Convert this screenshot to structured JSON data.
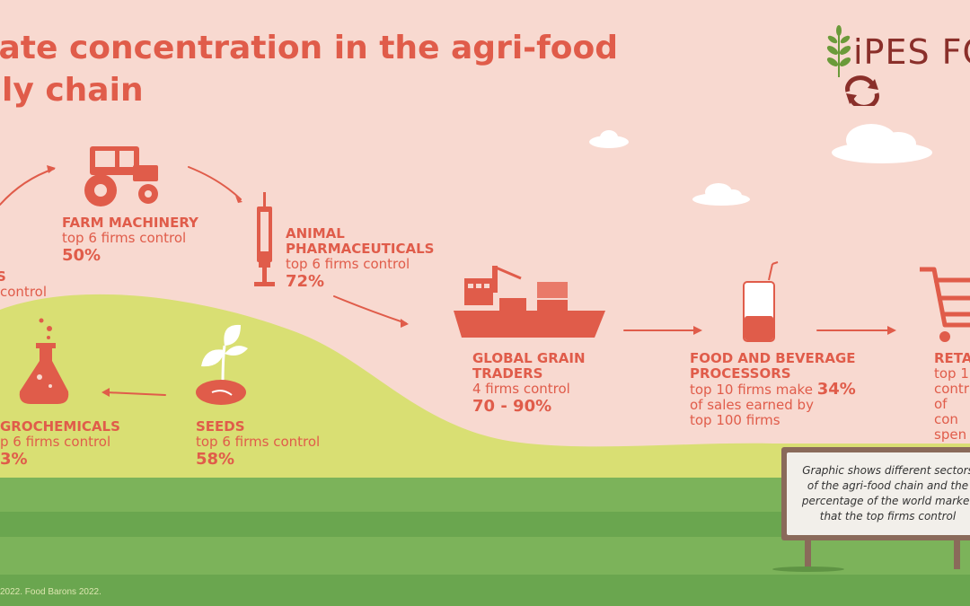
{
  "title": {
    "line1": "orate concentration in the agri-food",
    "line2": "ly chain"
  },
  "logo": {
    "text": "iPES FO"
  },
  "sectors": {
    "left_partial": {
      "name": "S",
      "detail": "control"
    },
    "farm_machinery": {
      "name": "FARM MACHINERY",
      "detail": "top 6 firms control",
      "value": "50%"
    },
    "animal_pharma": {
      "name1": "ANIMAL",
      "name2": "PHARMACEUTICALS",
      "detail": "top 6 firms control",
      "value": "72%"
    },
    "grain_traders": {
      "name1": "GLOBAL GRAIN",
      "name2": "TRADERS",
      "detail": "4 firms control",
      "value": "70 - 90%"
    },
    "food_beverage": {
      "name1": "FOOD AND BEVERAGE",
      "name2": "PROCESSORS",
      "detail1": "top 10 firms make",
      "value": "34%",
      "detail2": "of sales earned by",
      "detail3": "top 100 firms"
    },
    "retail": {
      "name": "RETA",
      "line1": "top 1",
      "line2": "contr",
      "line3": "of con",
      "line4": "spen"
    },
    "agrochemicals": {
      "name": "GROCHEMICALS",
      "detail": "p 6 firms control",
      "value": "3%"
    },
    "seeds": {
      "name": "SEEDS",
      "detail": "top 6 firms control",
      "value": "58%"
    }
  },
  "sign": {
    "line1": "Graphic shows different sectors",
    "line2": "of the agri-food chain and the",
    "line3": "percentage of the world market",
    "line4": "that the top firms control"
  },
  "footer": "2022. Food Barons 2022.",
  "colors": {
    "background": "#f8d9d0",
    "accent": "#e05c4a",
    "hill": "#d9df73",
    "field_light": "#7cb35a",
    "field_dark": "#6aa64f",
    "logo": "#8a2f2a",
    "leaf": "#6b9a3a"
  }
}
